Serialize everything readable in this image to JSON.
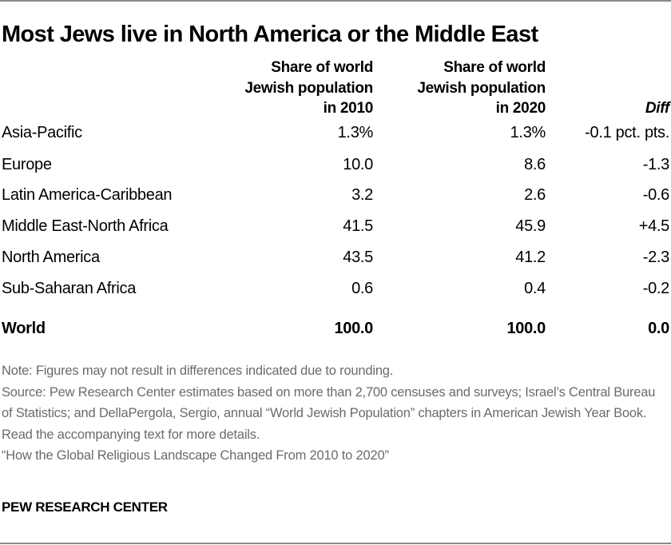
{
  "chart_data": {
    "type": "table",
    "title": "Most Jews live in North America or the Middle East",
    "columns": [
      "",
      "Share of world Jewish population in 2010",
      "Share of world Jewish population in 2020",
      "Diff"
    ],
    "header_lines": {
      "c1": [
        "Share of world",
        "Jewish population",
        "in 2010"
      ],
      "c2": [
        "Share of world",
        "Jewish population",
        "in 2020"
      ],
      "c3": "Diff"
    },
    "rows": [
      {
        "region": "Asia-Pacific",
        "y2010": "1.3%",
        "y2020": "1.3%",
        "diff": "-0.1 pct. pts."
      },
      {
        "region": "Europe",
        "y2010": "10.0",
        "y2020": "8.6",
        "diff": "-1.3"
      },
      {
        "region": "Latin America-Caribbean",
        "y2010": "3.2",
        "y2020": "2.6",
        "diff": "-0.6"
      },
      {
        "region": "Middle East-North Africa",
        "y2010": "41.5",
        "y2020": "45.9",
        "diff": "+4.5"
      },
      {
        "region": "North America",
        "y2010": "43.5",
        "y2020": "41.2",
        "diff": "-2.3"
      },
      {
        "region": "Sub-Saharan Africa",
        "y2010": "0.6",
        "y2020": "0.4",
        "diff": "-0.2"
      }
    ],
    "total": {
      "region": "World",
      "y2010": "100.0",
      "y2020": "100.0",
      "diff": "0.0"
    }
  },
  "notes": {
    "note": "Note: Figures may not result in differences indicated due to rounding.",
    "source": "Source: Pew Research Center estimates based on more than 2,700 censuses and surveys; Israel’s Central Bureau of Statistics; and DellaPergola, Sergio, annual “World Jewish Population” chapters in American Jewish Year Book. Read the accompanying text for more details.",
    "report": "“How the Global Religious Landscape Changed From 2010 to 2020”"
  },
  "brand": "PEW RESEARCH CENTER"
}
